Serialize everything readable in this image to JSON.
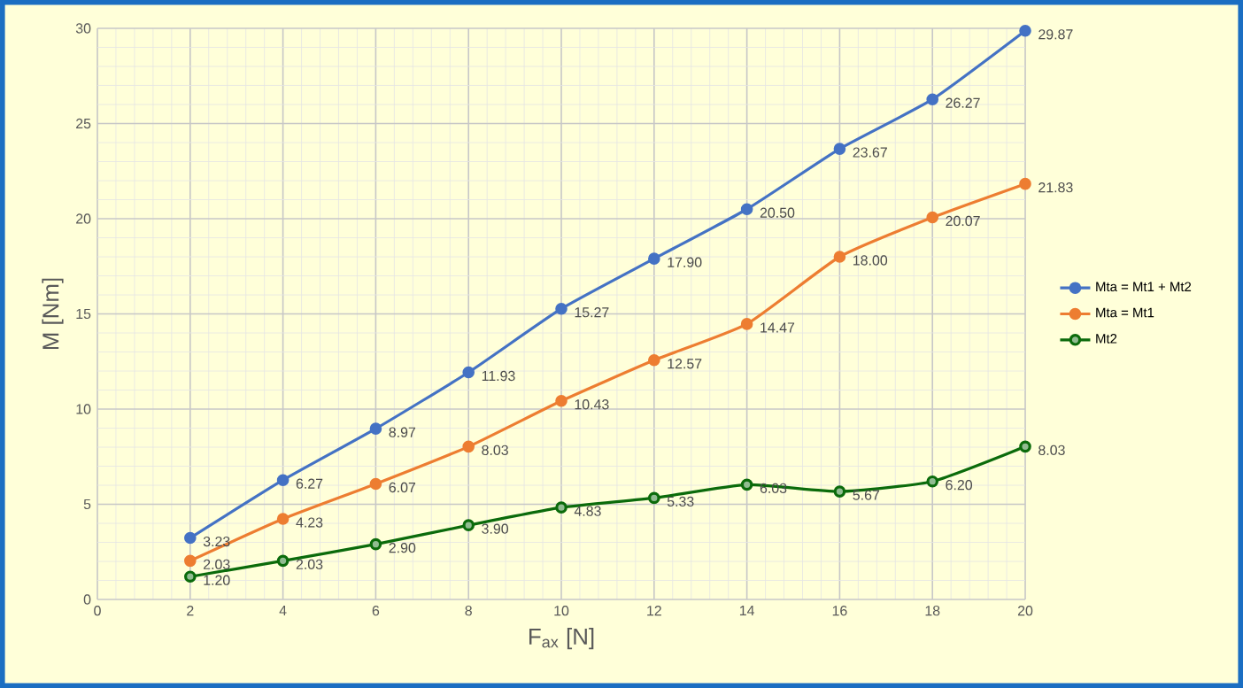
{
  "chart_data": {
    "type": "line",
    "xlabel": "F$_{ax}$ [N]",
    "ylabel": "M [Nm]",
    "x": [
      2,
      4,
      6,
      8,
      10,
      12,
      14,
      16,
      18,
      20
    ],
    "series": [
      {
        "name": "Mta = Mt1 + Mt2",
        "color": "#4472c4",
        "values": [
          3.23,
          6.27,
          8.97,
          11.93,
          15.27,
          17.9,
          20.5,
          23.67,
          26.27,
          29.87
        ],
        "value_labels": [
          "3.23",
          "6.27",
          "8.97",
          "11.93",
          "15.27",
          "17.90",
          "20.50",
          "23.67",
          "26.27",
          "29.87"
        ]
      },
      {
        "name": "Mta = Mt1",
        "color": "#ed7d31",
        "values": [
          2.03,
          4.23,
          6.07,
          8.03,
          10.43,
          12.57,
          14.47,
          18.0,
          20.07,
          21.83
        ],
        "value_labels": [
          "2.03",
          "4.23",
          "6.07",
          "8.03",
          "10.43",
          "12.57",
          "14.47",
          "18.00",
          "20.07",
          "21.83"
        ]
      },
      {
        "name": "Mt2",
        "color": "#0b6b0b",
        "values": [
          1.2,
          2.03,
          2.9,
          3.9,
          4.83,
          5.33,
          6.03,
          5.67,
          6.2,
          8.03
        ],
        "value_labels": [
          "1.20",
          "2.03",
          "2.90",
          "3.90",
          "4.83",
          "5.33",
          "6.03",
          "5.67",
          "6.20",
          "8.03"
        ]
      }
    ],
    "xlim": [
      0,
      20
    ],
    "xticks": [
      0,
      2,
      4,
      6,
      8,
      10,
      12,
      14,
      16,
      18,
      20
    ],
    "ylim": [
      0,
      30
    ],
    "yticks": [
      0,
      5,
      10,
      15,
      20,
      25,
      30
    ],
    "grid": true,
    "legend": "right",
    "marker": "circle",
    "line_style": "solid"
  }
}
